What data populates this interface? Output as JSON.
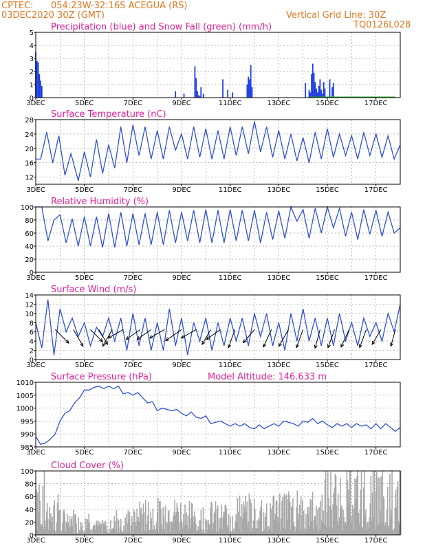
{
  "header": {
    "source": "CPTEC:",
    "location": "054:23W-32:16S   ACEGUA (RS)",
    "run": "03DEC2020 30Z (GMT)",
    "grid_note": "Vertical Grid Line: 30Z",
    "code": "TQ0126L028"
  },
  "colors": {
    "header": "#e07820",
    "title": "#e0209a",
    "line": "#2f4fd8",
    "precip": "#1f3fe0",
    "snow": "#20a020",
    "cloud": "#a8a8a8"
  },
  "x_labels": [
    "3DEC",
    "5DEC",
    "7DEC",
    "9DEC",
    "11DEC",
    "13DEC",
    "15DEC",
    "17DEC"
  ],
  "chart_data": [
    {
      "id": "precip",
      "type": "bar",
      "title": "Precipitation (blue) and Snow Fall (green) (mm/h)",
      "ylim": [
        0,
        5
      ],
      "yticks": [
        0,
        1,
        2,
        3,
        4,
        5
      ],
      "x": [
        0.0,
        0.05,
        0.1,
        0.15,
        0.2,
        0.25,
        5.75,
        6.1,
        6.55,
        6.6,
        6.65,
        6.7,
        6.75,
        6.8,
        6.9,
        7.7,
        7.9,
        8.1,
        8.7,
        8.75,
        8.8,
        8.85,
        8.9,
        11.1,
        11.25,
        11.3,
        11.35,
        11.4,
        11.45,
        11.5,
        11.55,
        11.6,
        11.65,
        11.7,
        11.75,
        11.8,
        11.85,
        11.9,
        12.1,
        12.2,
        12.25
      ],
      "values": [
        3.5,
        2.8,
        2.7,
        1.8,
        1.3,
        0.9,
        0.5,
        0.3,
        2.4,
        1.5,
        0.5,
        0.2,
        0.1,
        0.8,
        0.3,
        1.4,
        0.6,
        0.4,
        1.0,
        1.6,
        1.4,
        2.5,
        0.8,
        1.1,
        0.6,
        0.4,
        1.8,
        2.6,
        1.9,
        1.2,
        0.7,
        0.4,
        0.9,
        1.4,
        0.6,
        0.3,
        1.2,
        0.7,
        1.4,
        0.8,
        1.1
      ]
    },
    {
      "id": "temp",
      "type": "line",
      "title": "Surface Temperature (nC)",
      "ylim": [
        10,
        28
      ],
      "yticks": [
        12,
        16,
        20,
        24,
        28
      ],
      "x": [
        0,
        0.2,
        0.45,
        0.7,
        0.95,
        1.2,
        1.45,
        1.75,
        2.0,
        2.25,
        2.5,
        2.75,
        3.0,
        3.25,
        3.5,
        3.75,
        4.0,
        4.25,
        4.5,
        4.75,
        5.0,
        5.25,
        5.5,
        5.75,
        6.0,
        6.25,
        6.5,
        6.75,
        7.0,
        7.25,
        7.5,
        7.75,
        8.0,
        8.25,
        8.5,
        8.75,
        9.0,
        9.25,
        9.5,
        9.75,
        10.0,
        10.25,
        10.5,
        10.75,
        11.0,
        11.25,
        11.5,
        11.75,
        12.0,
        12.25,
        12.5,
        12.75,
        13.0,
        13.25,
        13.5,
        13.75,
        14.0,
        14.25,
        14.5,
        14.75,
        15.0
      ],
      "values": [
        17,
        17,
        24.5,
        16,
        23.5,
        12.5,
        18.5,
        11,
        19,
        12,
        22.5,
        13,
        21,
        14.5,
        26,
        16,
        26.5,
        18,
        26,
        17,
        25,
        17,
        26,
        19.5,
        24,
        17,
        26,
        17.5,
        25.5,
        17,
        25,
        17,
        26,
        18,
        26,
        18.5,
        27.5,
        19,
        26,
        17.5,
        25,
        17,
        24,
        16.5,
        23,
        16,
        24.5,
        17,
        25.5,
        17.5,
        24,
        18,
        23.5,
        17,
        24.5,
        18,
        24,
        17.5,
        23.5,
        17,
        21
      ]
    },
    {
      "id": "rh",
      "type": "line",
      "title": "Relative Humidity (%)",
      "ylim": [
        0,
        100
      ],
      "yticks": [
        0,
        20,
        40,
        60,
        80,
        100
      ],
      "x": [
        0,
        0.25,
        0.5,
        0.75,
        1.0,
        1.25,
        1.5,
        1.75,
        2.0,
        2.25,
        2.5,
        2.75,
        3.0,
        3.25,
        3.5,
        3.75,
        4.0,
        4.25,
        4.5,
        4.75,
        5.0,
        5.25,
        5.5,
        5.75,
        6.0,
        6.25,
        6.5,
        6.75,
        7.0,
        7.25,
        7.5,
        7.75,
        8.0,
        8.25,
        8.5,
        8.75,
        9.0,
        9.25,
        9.5,
        9.75,
        10.0,
        10.25,
        10.5,
        10.75,
        11.0,
        11.25,
        11.5,
        11.75,
        12.0,
        12.25,
        12.5,
        12.75,
        13.0,
        13.25,
        13.5,
        13.75,
        14.0,
        14.25,
        14.5,
        14.75,
        15.0
      ],
      "values": [
        100,
        100,
        48,
        80,
        88,
        45,
        82,
        40,
        85,
        40,
        85,
        38,
        90,
        38,
        92,
        40,
        90,
        42,
        90,
        42,
        92,
        42,
        95,
        45,
        92,
        48,
        95,
        45,
        96,
        45,
        95,
        45,
        96,
        48,
        95,
        48,
        95,
        45,
        92,
        50,
        94,
        52,
        100,
        78,
        96,
        52,
        98,
        60,
        100,
        68,
        98,
        55,
        92,
        50,
        96,
        58,
        95,
        55,
        92,
        60,
        68
      ]
    },
    {
      "id": "wind",
      "type": "line",
      "title": "Surface Wind (m/s)",
      "ylim": [
        0,
        14
      ],
      "yticks": [
        0,
        2,
        4,
        6,
        8,
        10,
        12,
        14
      ],
      "x": [
        0,
        0.25,
        0.5,
        0.75,
        1.0,
        1.25,
        1.5,
        1.75,
        2.0,
        2.25,
        2.5,
        2.75,
        3.0,
        3.25,
        3.5,
        3.75,
        4.0,
        4.25,
        4.5,
        4.75,
        5.0,
        5.25,
        5.5,
        5.75,
        6.0,
        6.25,
        6.5,
        6.75,
        7.0,
        7.25,
        7.5,
        7.75,
        8.0,
        8.25,
        8.5,
        8.75,
        9.0,
        9.25,
        9.5,
        9.75,
        10.0,
        10.25,
        10.5,
        10.75,
        11.0,
        11.25,
        11.5,
        11.75,
        12.0,
        12.25,
        12.5,
        12.75,
        13.0,
        13.25,
        13.5,
        13.75,
        14.0,
        14.25,
        14.5,
        14.75,
        15.0
      ],
      "values": [
        8,
        2.5,
        13,
        1,
        11,
        6,
        9,
        5,
        8,
        3,
        7,
        5,
        9,
        4,
        9,
        2,
        10,
        3,
        9,
        2,
        8,
        2,
        11,
        3,
        9,
        1,
        8,
        4,
        9,
        2,
        8,
        3,
        9,
        4,
        9,
        3,
        10,
        5,
        10,
        3,
        8,
        2,
        10,
        4,
        11,
        4,
        9,
        3,
        9,
        3,
        10,
        4,
        8,
        3,
        9,
        5,
        8,
        4,
        10,
        6,
        12
      ],
      "barbs": [
        {
          "x": 0.8,
          "dir": 315,
          "speed": 4
        },
        {
          "x": 1.55,
          "dir": 300,
          "speed": 4
        },
        {
          "x": 2.25,
          "dir": 315,
          "speed": 3
        },
        {
          "x": 2.6,
          "dir": 300,
          "speed": 3
        },
        {
          "x": 3.15,
          "dir": 240,
          "speed": 4
        },
        {
          "x": 3.6,
          "dir": 210,
          "speed": 3
        },
        {
          "x": 4.3,
          "dir": 215,
          "speed": 3
        },
        {
          "x": 4.75,
          "dir": 215,
          "speed": 3
        },
        {
          "x": 5.3,
          "dir": 210,
          "speed": 3
        },
        {
          "x": 6.0,
          "dir": 215,
          "speed": 4
        },
        {
          "x": 6.6,
          "dir": 210,
          "speed": 3
        },
        {
          "x": 7.2,
          "dir": 240,
          "speed": 3
        },
        {
          "x": 7.6,
          "dir": 215,
          "speed": 3
        },
        {
          "x": 8.2,
          "dir": 250,
          "speed": 4
        },
        {
          "x": 9.0,
          "dir": 230,
          "speed": 3
        },
        {
          "x": 9.7,
          "dir": 245,
          "speed": 4
        },
        {
          "x": 10.4,
          "dir": 240,
          "speed": 4
        },
        {
          "x": 11.0,
          "dir": 250,
          "speed": 4
        },
        {
          "x": 11.7,
          "dir": 255,
          "speed": 4
        },
        {
          "x": 12.3,
          "dir": 250,
          "speed": 4
        },
        {
          "x": 12.9,
          "dir": 245,
          "speed": 4
        },
        {
          "x": 13.6,
          "dir": 250,
          "speed": 4
        },
        {
          "x": 14.2,
          "dir": 240,
          "speed": 3
        },
        {
          "x": 14.8,
          "dir": 255,
          "speed": 3
        }
      ]
    },
    {
      "id": "pressure",
      "type": "line",
      "title": "Surface Pressure (hPa)",
      "subtitle": "Model Altitude: 146.633 m",
      "ylim": [
        985,
        1010
      ],
      "yticks": [
        985,
        990,
        995,
        1000,
        1005,
        1010
      ],
      "x": [
        0,
        0.2,
        0.4,
        0.6,
        0.8,
        1.0,
        1.2,
        1.4,
        1.6,
        1.8,
        2.0,
        2.2,
        2.4,
        2.6,
        2.8,
        3.0,
        3.2,
        3.4,
        3.6,
        3.8,
        4.0,
        4.2,
        4.4,
        4.6,
        4.8,
        5.0,
        5.2,
        5.4,
        5.6,
        5.8,
        6.0,
        6.2,
        6.4,
        6.6,
        6.8,
        7.0,
        7.2,
        7.4,
        7.6,
        7.8,
        8.0,
        8.2,
        8.4,
        8.6,
        8.8,
        9.0,
        9.2,
        9.4,
        9.6,
        9.8,
        10.0,
        10.2,
        10.4,
        10.6,
        10.8,
        11.0,
        11.2,
        11.4,
        11.6,
        11.8,
        12.0,
        12.2,
        12.4,
        12.6,
        12.8,
        13.0,
        13.2,
        13.4,
        13.6,
        13.8,
        14.0,
        14.2,
        14.4,
        14.6,
        14.8,
        15.0
      ],
      "values": [
        989,
        986,
        986.5,
        988,
        990,
        995,
        998,
        999,
        1002,
        1004,
        1007,
        1007,
        1008,
        1008.5,
        1007.5,
        1008.5,
        1007.5,
        1008.5,
        1005.5,
        1006,
        1005,
        1006,
        1004,
        1002,
        1002.5,
        999,
        1000,
        999.5,
        999,
        999.5,
        998,
        997,
        998.5,
        996.5,
        996,
        997,
        994,
        994.5,
        995,
        994,
        993,
        994,
        993,
        994,
        992.5,
        992,
        993.5,
        992,
        993,
        994,
        993,
        995,
        994.5,
        994,
        993,
        995,
        994.5,
        996,
        994,
        995,
        993.5,
        992.5,
        994,
        993,
        994,
        992.5,
        994,
        993,
        993.5,
        992,
        994,
        992,
        994,
        992.5,
        991,
        992.5
      ]
    },
    {
      "id": "cloud",
      "type": "bar",
      "title": "Cloud Cover (%)",
      "ylim": [
        0,
        100
      ],
      "yticks": [
        0,
        20,
        40,
        60,
        80,
        100
      ]
    }
  ]
}
